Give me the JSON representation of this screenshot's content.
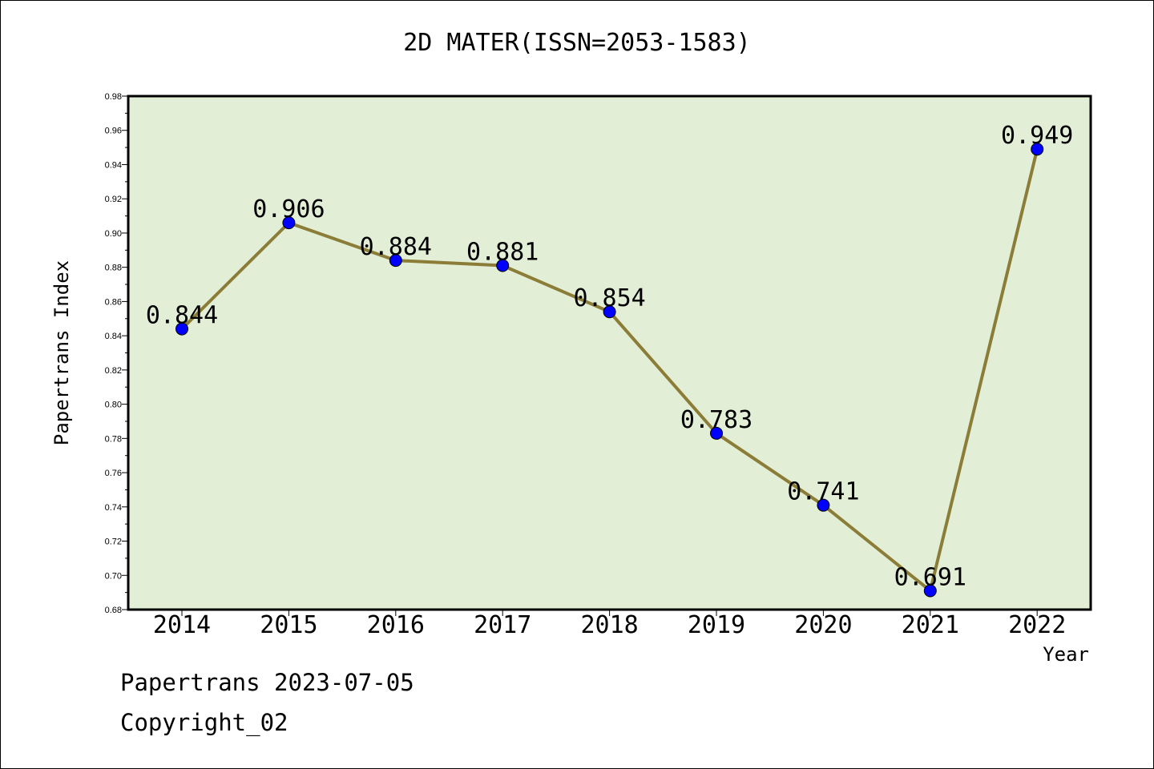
{
  "page": {
    "title": "2D MATER(ISSN=2053-1583)",
    "footer_line1": "Papertrans 2023-07-05",
    "footer_line2": "Copyright_02"
  },
  "chart_data": {
    "type": "line",
    "title": "2D MATER(ISSN=2053-1583)",
    "xlabel": "Year",
    "ylabel": "Papertrans Index",
    "categories": [
      "2014",
      "2015",
      "2016",
      "2017",
      "2018",
      "2019",
      "2020",
      "2021",
      "2022"
    ],
    "values": [
      0.844,
      0.906,
      0.884,
      0.881,
      0.854,
      0.783,
      0.741,
      0.691,
      0.949
    ],
    "data_labels": [
      "0.844",
      "0.906",
      "0.884",
      "0.881",
      "0.854",
      "0.783",
      "0.741",
      "0.691",
      "0.949"
    ],
    "ylim": [
      0.68,
      0.98
    ],
    "yticks": [
      "0.68",
      "0.70",
      "0.72",
      "0.74",
      "0.76",
      "0.78",
      "0.80",
      "0.82",
      "0.84",
      "0.86",
      "0.88",
      "0.90",
      "0.92",
      "0.94",
      "0.96",
      "0.98"
    ],
    "grid": false,
    "legend": "none",
    "colors": {
      "plot_background": "#e2efd6",
      "line": "#8b7d37",
      "marker": "#0000ff"
    }
  }
}
